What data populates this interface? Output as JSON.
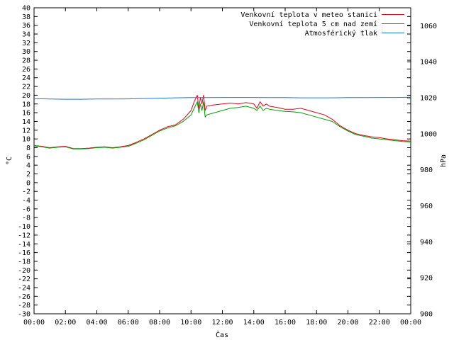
{
  "chart_data": {
    "type": "line",
    "xlabel": "Čas",
    "ylabel": "°C",
    "y2label": "hPa",
    "x_ticks": [
      "00:00",
      "02:00",
      "04:00",
      "06:00",
      "08:00",
      "10:00",
      "12:00",
      "14:00",
      "16:00",
      "18:00",
      "20:00",
      "22:00",
      "00:00"
    ],
    "xlim": [
      0,
      24
    ],
    "ylim": [
      -30,
      40
    ],
    "y_ticks": [
      40,
      38,
      36,
      34,
      32,
      30,
      28,
      26,
      24,
      22,
      20,
      18,
      16,
      14,
      12,
      10,
      8,
      6,
      4,
      2,
      0,
      -2,
      -4,
      -6,
      -8,
      -10,
      -12,
      -14,
      -16,
      -18,
      -20,
      -22,
      -24,
      -26,
      -28,
      -30
    ],
    "y2lim": [
      900,
      1070
    ],
    "y2_ticks": [
      1060,
      1040,
      1020,
      1000,
      980,
      960,
      940,
      920,
      900
    ],
    "grid": false,
    "legend_position": "top-right",
    "series": [
      {
        "name": "Venkovní teplota v meteo stanici",
        "axis": "left",
        "color": "#e8001c",
        "x": [
          0,
          0.5,
          1,
          1.5,
          2,
          2.5,
          3,
          3.5,
          4,
          4.5,
          5,
          5.5,
          6,
          6.5,
          7,
          7.5,
          8,
          8.5,
          9,
          9.5,
          10,
          10.2,
          10.4,
          10.5,
          10.6,
          10.7,
          10.8,
          10.9,
          11,
          11.5,
          12,
          12.5,
          13,
          13.5,
          14,
          14.2,
          14.4,
          14.6,
          14.8,
          15,
          15.5,
          16,
          16.5,
          17,
          17.5,
          18,
          18.5,
          19,
          19.5,
          20,
          20.5,
          21,
          21.5,
          22,
          22.5,
          23,
          23.5,
          24
        ],
        "y": [
          8.5,
          8.3,
          8.0,
          8.2,
          8.3,
          7.8,
          7.8,
          7.9,
          8.1,
          8.2,
          8.0,
          8.2,
          8.5,
          9.2,
          10.0,
          11.0,
          12.0,
          12.8,
          13.2,
          14.5,
          16.5,
          18.5,
          20.0,
          17.0,
          19.5,
          18.0,
          20.0,
          16.5,
          17.5,
          17.8,
          18.0,
          18.2,
          18.0,
          18.3,
          18.0,
          17.0,
          18.5,
          17.5,
          18.0,
          17.5,
          17.2,
          16.8,
          16.8,
          17.0,
          16.5,
          16.0,
          15.5,
          14.5,
          13.0,
          12.0,
          11.2,
          10.8,
          10.5,
          10.3,
          10.0,
          9.8,
          9.6,
          9.5
        ]
      },
      {
        "name": "Venkovní teplota 5 cm nad zemí",
        "axis": "left",
        "color": "#00a000",
        "x": [
          0,
          0.5,
          1,
          1.5,
          2,
          2.5,
          3,
          3.5,
          4,
          4.5,
          5,
          5.5,
          6,
          6.5,
          7,
          7.5,
          8,
          8.5,
          9,
          9.5,
          10,
          10.2,
          10.4,
          10.5,
          10.6,
          10.7,
          10.8,
          10.9,
          11,
          11.5,
          12,
          12.5,
          13,
          13.5,
          14,
          14.2,
          14.4,
          14.6,
          14.8,
          15,
          15.5,
          16,
          16.5,
          17,
          17.5,
          18,
          18.5,
          19,
          19.5,
          20,
          20.5,
          21,
          21.5,
          22,
          22.5,
          23,
          23.5,
          24
        ],
        "y": [
          8.4,
          8.2,
          7.9,
          8.1,
          8.2,
          7.7,
          7.7,
          7.8,
          8.0,
          8.1,
          7.9,
          8.1,
          8.3,
          9.0,
          9.8,
          10.8,
          11.8,
          12.5,
          13.0,
          14.0,
          15.5,
          17.0,
          18.5,
          16.0,
          18.0,
          16.5,
          18.5,
          15.0,
          15.5,
          16.0,
          16.5,
          17.0,
          17.2,
          17.5,
          17.0,
          16.5,
          17.5,
          16.5,
          17.0,
          16.8,
          16.5,
          16.3,
          16.2,
          16.0,
          15.5,
          15.0,
          14.5,
          14.0,
          12.8,
          11.8,
          11.0,
          10.6,
          10.2,
          10.0,
          9.8,
          9.6,
          9.4,
          9.3
        ]
      },
      {
        "name": "Atmosférický tlak",
        "axis": "right",
        "color": "#1f77d4",
        "x": [
          0,
          1,
          2,
          3,
          4,
          5,
          6,
          7,
          8,
          9,
          10,
          11,
          12,
          13,
          14,
          15,
          16,
          17,
          18,
          19,
          20,
          21,
          22,
          23,
          24
        ],
        "y": [
          1019.5,
          1019.3,
          1019.2,
          1019.2,
          1019.3,
          1019.3,
          1019.4,
          1019.6,
          1019.8,
          1020.0,
          1020.1,
          1020.1,
          1020.2,
          1020.2,
          1020.2,
          1020.1,
          1020.1,
          1020.0,
          1020.0,
          1020.0,
          1020.1,
          1020.1,
          1020.2,
          1020.2,
          1020.3
        ]
      }
    ]
  }
}
